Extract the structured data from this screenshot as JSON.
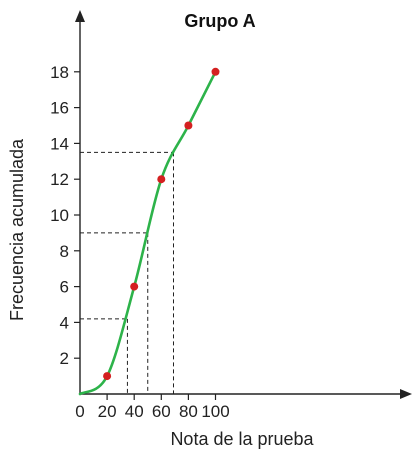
{
  "chart_data": {
    "type": "line",
    "title": "Grupo A",
    "xlabel": "Nota de la prueba",
    "ylabel": "Frecuencia acumulada",
    "xlim": [
      0,
      115
    ],
    "ylim": [
      0,
      20
    ],
    "x_ticks": [
      "0",
      "20",
      "40",
      "60",
      "80",
      "100"
    ],
    "y_ticks": [
      "2",
      "4",
      "6",
      "8",
      "10",
      "12",
      "14",
      "16",
      "18"
    ],
    "series": [
      {
        "x": [
          0,
          20,
          40,
          60,
          80,
          100
        ],
        "y": [
          0,
          1,
          6,
          12,
          15,
          18
        ]
      }
    ],
    "reference_lines": [
      {
        "x": 35,
        "y": 4.2
      },
      {
        "x": 50,
        "y": 9
      },
      {
        "x": 69,
        "y": 13.5
      }
    ],
    "grid": false,
    "line_color": "#2db34a",
    "point_color": "#d42020"
  }
}
